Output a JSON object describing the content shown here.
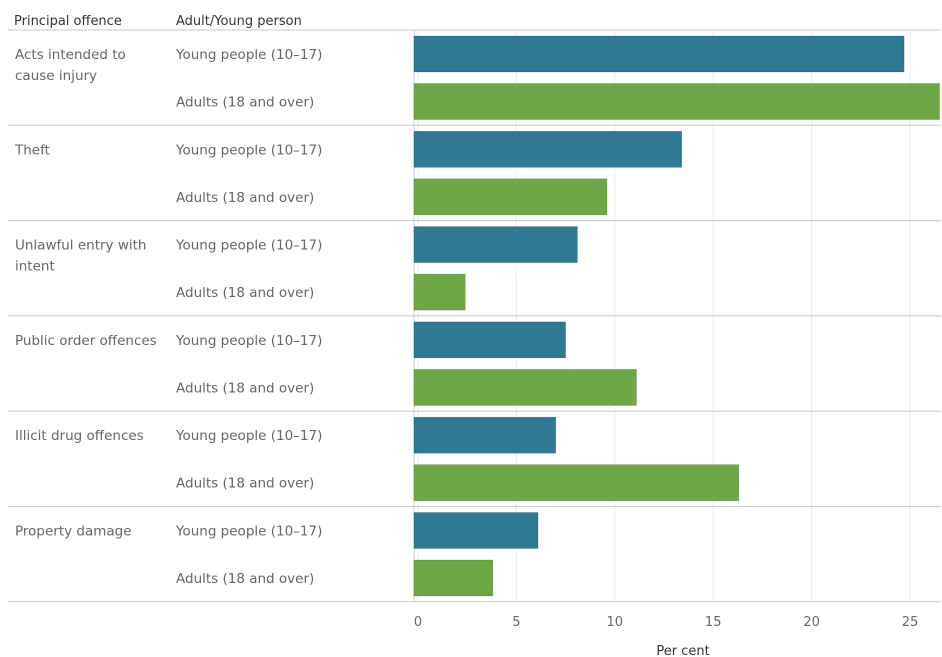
{
  "chart_data": {
    "type": "bar",
    "orientation": "horizontal",
    "column_headers": [
      "Principal offence",
      "Adult/Young person"
    ],
    "categories": [
      [
        "Acts intended to",
        "cause injury"
      ],
      [
        "Theft"
      ],
      [
        "Unlawful entry with",
        "intent"
      ],
      [
        "Public order offences"
      ],
      [
        "Illicit drug offences"
      ],
      [
        "Property damage"
      ]
    ],
    "series": [
      {
        "name": "Young people (10–17)",
        "color": "#2e7a95",
        "values": [
          24.7,
          13.4,
          8.1,
          7.5,
          7.0,
          6.1
        ]
      },
      {
        "name": "Adults (18 and over)",
        "color": "#6ea845",
        "values": [
          26.5,
          9.6,
          2.4,
          11.1,
          16.3,
          3.8
        ]
      }
    ],
    "xlabel": "Per cent",
    "xlim": [
      0,
      27.5
    ],
    "xticks": [
      0,
      5,
      10,
      15,
      20,
      25
    ],
    "grid": true
  }
}
